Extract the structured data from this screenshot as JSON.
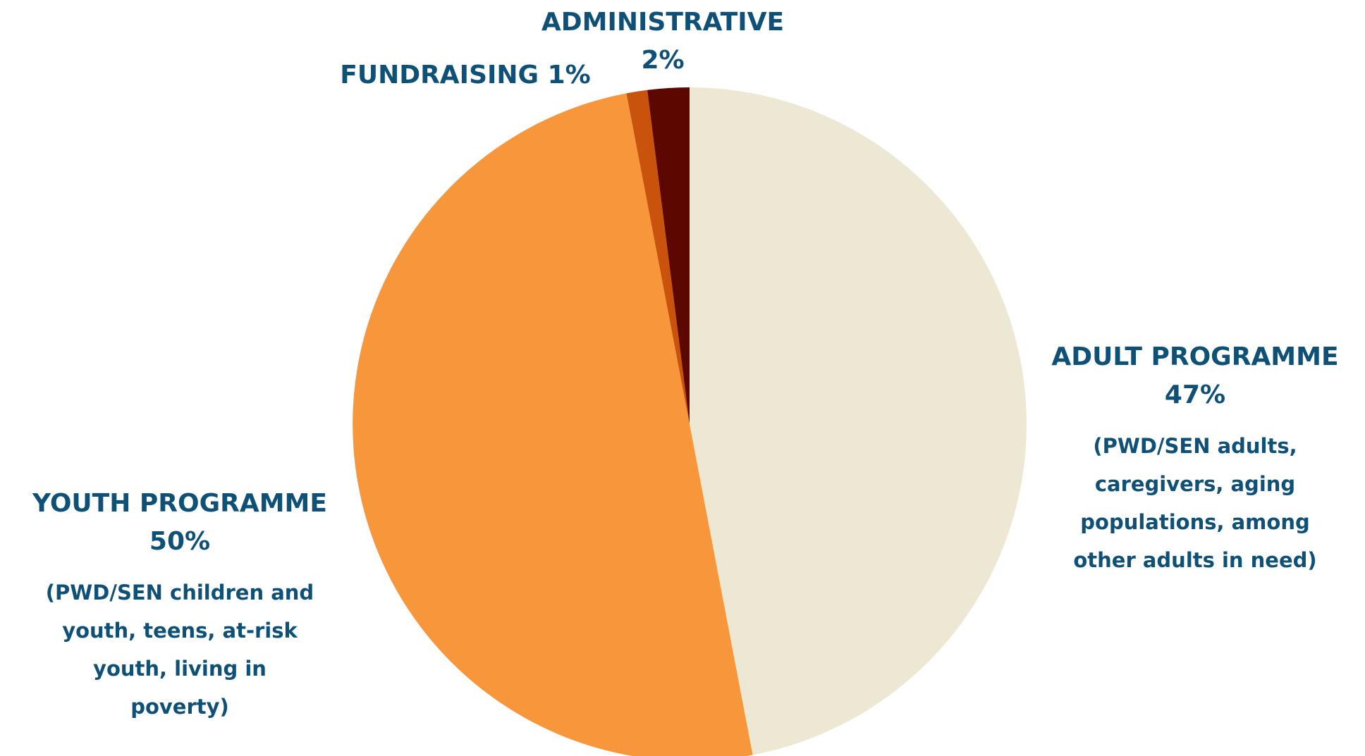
{
  "chart_data": {
    "type": "pie",
    "colors": [
      "#ede8d3",
      "#f7963b",
      "#c9530c",
      "#5c0700"
    ],
    "slices": [
      {
        "label": "ADULT PROGRAMME",
        "value": 47,
        "value_label": "47%",
        "description": "(PWD/SEN adults, caregivers, aging populations, among other adults in need)"
      },
      {
        "label": "YOUTH PROGRAMME",
        "value": 50,
        "value_label": "50%",
        "description": "(PWD/SEN children and youth, teens, at-risk youth, living in poverty)"
      },
      {
        "label": "FUNDRAISING",
        "value": 1,
        "value_label": "1%",
        "description": ""
      },
      {
        "label": "ADMINISTRATIVE",
        "value": 2,
        "value_label": "2%",
        "description": ""
      }
    ]
  }
}
